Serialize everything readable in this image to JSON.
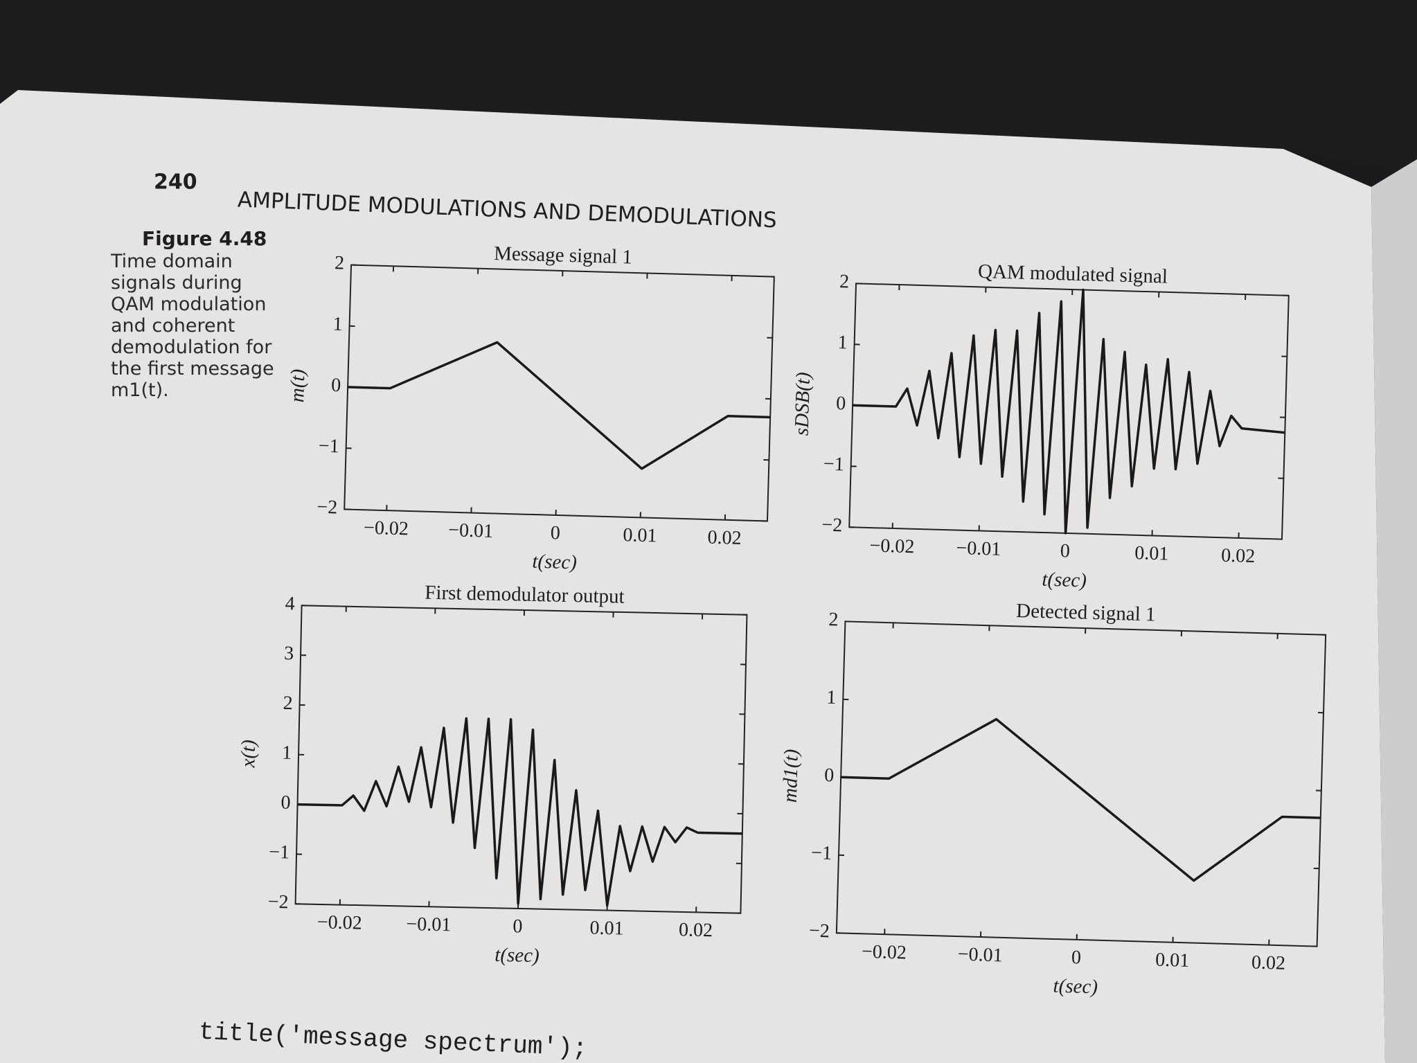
{
  "header": {
    "page_number": "240",
    "running_title": "AMPLITUDE MODULATIONS AND DEMODULATIONS"
  },
  "caption": {
    "label": "Figure 4.48",
    "text": "Time domain signals during QAM modulation and coherent demodulation for the first message m1(t)."
  },
  "code": "title('message spectrum');",
  "chart_data": [
    {
      "type": "line",
      "title": "Message signal 1",
      "x_label": "t(sec)",
      "y_label": "m(t)",
      "color": "#1a1a1a",
      "x": [
        -0.025,
        -0.02,
        -0.0075,
        0.01,
        0.02,
        0.025
      ],
      "values": [
        0,
        0,
        0.8,
        -1.2,
        -0.3,
        -0.3
      ],
      "xlim": [
        -0.025,
        0.025
      ],
      "ylim": [
        -2,
        2
      ],
      "xticks": [
        {
          "value": -0.02,
          "label": "−0.02"
        },
        {
          "value": -0.01,
          "label": "−0.01"
        },
        0,
        0.01,
        0.02
      ],
      "yticks": [
        {
          "value": -2,
          "label": "−2"
        },
        {
          "value": -1,
          "label": "−1"
        },
        0,
        1,
        2
      ]
    },
    {
      "type": "line",
      "title": "QAM modulated signal",
      "x_label": "t(sec)",
      "y_label": "sDSB(t)",
      "color": "#1a1a1a",
      "x": [
        -0.025,
        -0.02,
        -0.01875,
        -0.0175,
        -0.01625,
        -0.015,
        -0.01375,
        -0.0125,
        -0.01125,
        -0.01,
        -0.00875,
        -0.0075,
        -0.00625,
        -0.005,
        -0.00375,
        -0.0025,
        -0.00125,
        0,
        0.00125,
        0.0025,
        0.00375,
        0.005,
        0.00625,
        0.0075,
        0.00875,
        0.01,
        0.01125,
        0.0125,
        0.01375,
        0.015,
        0.01625,
        0.0175,
        0.01875,
        0.02,
        0.025
      ],
      "values": [
        0,
        0,
        0.3,
        -0.3,
        0.6,
        -0.5,
        0.9,
        -0.8,
        1.2,
        -0.9,
        1.3,
        -1.1,
        1.3,
        -1.5,
        1.6,
        -1.7,
        1.8,
        -2.0,
        2.0,
        -1.9,
        1.2,
        -1.4,
        1.0,
        -1.2,
        0.8,
        -0.9,
        0.9,
        -0.9,
        0.7,
        -0.8,
        0.4,
        -0.5,
        0.0,
        -0.2,
        -0.25
      ],
      "xlim": [
        -0.025,
        0.025
      ],
      "ylim": [
        -2,
        2
      ],
      "xticks": [
        {
          "value": -0.02,
          "label": "−0.02"
        },
        {
          "value": -0.01,
          "label": "−0.01"
        },
        0,
        0.01,
        0.02
      ],
      "yticks": [
        {
          "value": -2,
          "label": "−2"
        },
        {
          "value": -1,
          "label": "−1"
        },
        0,
        1,
        2
      ]
    },
    {
      "type": "line",
      "title": "First demodulator output",
      "x_label": "t(sec)",
      "y_label": "x(t)",
      "color": "#1a1a1a",
      "x": [
        -0.025,
        -0.02,
        -0.01875,
        -0.0175,
        -0.01625,
        -0.015,
        -0.01375,
        -0.0125,
        -0.01125,
        -0.01,
        -0.00875,
        -0.0075,
        -0.00625,
        -0.005,
        -0.00375,
        -0.0025,
        -0.00125,
        0,
        0.00125,
        0.0025,
        0.00375,
        0.005,
        0.00625,
        0.0075,
        0.00875,
        0.01,
        0.01125,
        0.0125,
        0.01375,
        0.015,
        0.01625,
        0.0175,
        0.01875,
        0.02,
        0.025
      ],
      "values": [
        0,
        0,
        0.2,
        -0.1,
        0.5,
        0.0,
        0.8,
        0.1,
        1.2,
        0.0,
        1.6,
        -0.3,
        1.8,
        -0.8,
        1.8,
        -1.4,
        1.8,
        -1.9,
        1.6,
        -1.8,
        1.0,
        -1.7,
        0.4,
        -1.6,
        0.0,
        -1.9,
        -0.3,
        -1.2,
        -0.3,
        -1.0,
        -0.3,
        -0.6,
        -0.3,
        -0.4,
        -0.4
      ],
      "xlim": [
        -0.025,
        0.025
      ],
      "ylim": [
        -2,
        4
      ],
      "xticks": [
        {
          "value": -0.02,
          "label": "−0.02"
        },
        {
          "value": -0.01,
          "label": "−0.01"
        },
        0,
        0.01,
        0.02
      ],
      "yticks": [
        {
          "value": -2,
          "label": "−2"
        },
        {
          "value": -1,
          "label": "−1"
        },
        0,
        1,
        2,
        3,
        4
      ]
    },
    {
      "type": "line",
      "title": "Detected signal 1",
      "x_label": "t(sec)",
      "y_label": "md1(t)",
      "color": "#1a1a1a",
      "x": [
        -0.025,
        -0.02,
        -0.009,
        0.012,
        0.021,
        0.025
      ],
      "values": [
        0,
        0,
        0.8,
        -1.2,
        -0.35,
        -0.35
      ],
      "xlim": [
        -0.025,
        0.025
      ],
      "ylim": [
        -2,
        2
      ],
      "xticks": [
        {
          "value": -0.02,
          "label": "−0.02"
        },
        {
          "value": -0.01,
          "label": "−0.01"
        },
        0,
        0.01,
        0.02
      ],
      "yticks": [
        {
          "value": -2,
          "label": "−2"
        },
        {
          "value": -1,
          "label": "−1"
        },
        0,
        1,
        2
      ]
    }
  ]
}
